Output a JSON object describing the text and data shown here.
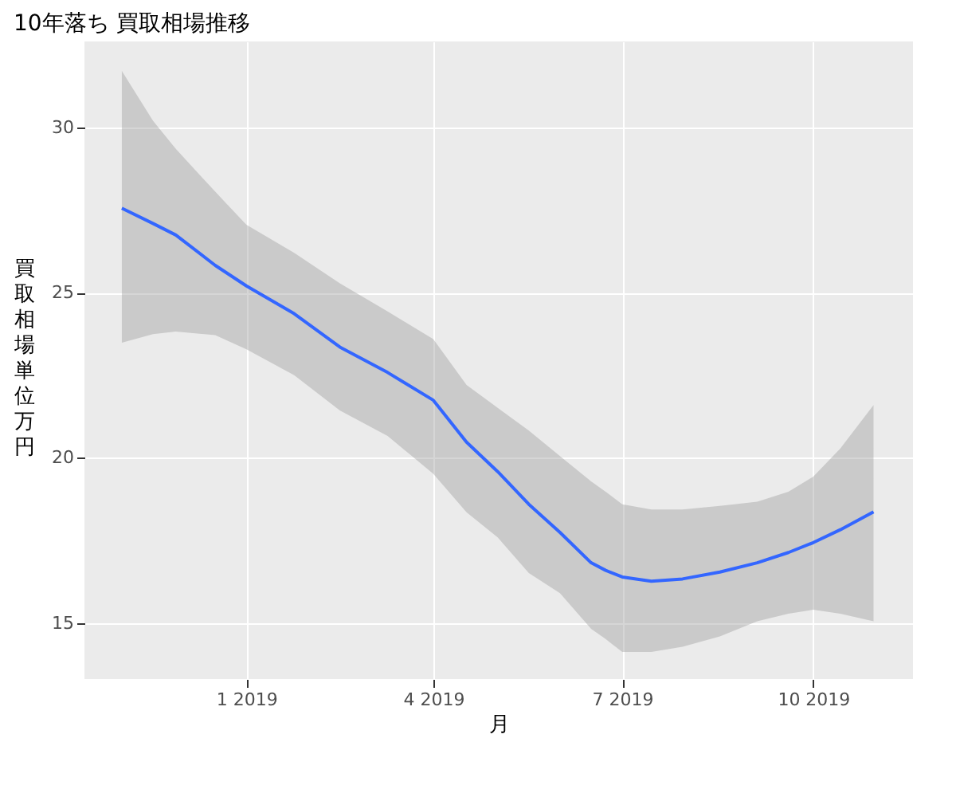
{
  "chart_data": {
    "type": "line",
    "title": "10年落ち 買取相場推移",
    "xlabel": "月",
    "ylabel": "買取相場単位万円",
    "x": [
      "2018-11-02",
      "2018-11-17",
      "2018-11-28",
      "2018-12-17",
      "2019-01-01",
      "2019-01-24",
      "2019-02-15",
      "2019-03-10",
      "2019-04-01",
      "2019-04-17",
      "2019-05-02",
      "2019-05-17",
      "2019-06-01",
      "2019-06-16",
      "2019-06-23",
      "2019-07-01",
      "2019-07-15",
      "2019-07-30",
      "2019-08-17",
      "2019-09-04",
      "2019-09-19",
      "2019-10-01",
      "2019-10-14",
      "2019-10-30"
    ],
    "series": [
      {
        "color": "#3366ff",
        "values": [
          27.55,
          27.09,
          26.74,
          25.82,
          25.2,
          24.36,
          23.35,
          22.58,
          21.74,
          20.47,
          19.58,
          18.59,
          17.74,
          16.82,
          16.59,
          16.39,
          16.26,
          16.33,
          16.54,
          16.82,
          17.13,
          17.43,
          17.82,
          18.36
        ],
        "lower": [
          23.48,
          23.74,
          23.82,
          23.71,
          23.28,
          22.5,
          21.43,
          20.66,
          19.51,
          18.35,
          17.59,
          16.51,
          15.9,
          14.82,
          14.51,
          14.12,
          14.12,
          14.28,
          14.59,
          15.05,
          15.28,
          15.4,
          15.28,
          15.05
        ],
        "upper": [
          31.71,
          30.2,
          29.35,
          28.05,
          27.05,
          26.2,
          25.28,
          24.43,
          23.59,
          22.2,
          21.51,
          20.82,
          20.05,
          19.28,
          18.97,
          18.59,
          18.43,
          18.43,
          18.54,
          18.67,
          18.97,
          19.43,
          20.28,
          21.59
        ]
      }
    ],
    "xlim": [
      "2018-10-15",
      "2019-11-18"
    ],
    "xticks": [
      {
        "value": "2019-01-01",
        "label": "1 2019"
      },
      {
        "value": "2019-04-01",
        "label": "4 2019"
      },
      {
        "value": "2019-07-01",
        "label": "7 2019"
      },
      {
        "value": "2019-10-01",
        "label": "10 2019"
      }
    ],
    "ylim": [
      13.3,
      32.6
    ],
    "yticks": [
      15,
      20,
      25,
      30
    ],
    "grid": true
  }
}
